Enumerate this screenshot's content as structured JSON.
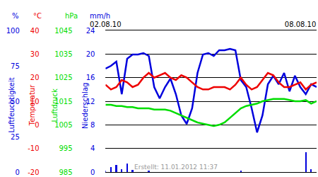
{
  "chart_data": {
    "type": "line",
    "grid": true,
    "x": [
      0,
      4,
      8,
      12,
      16,
      20,
      24,
      28,
      32,
      36,
      40,
      44,
      48,
      52,
      56,
      60,
      64,
      68,
      72,
      76,
      80,
      84,
      88,
      92,
      96,
      100,
      104,
      108,
      112,
      116,
      120,
      124,
      128,
      132,
      136,
      140,
      144,
      148,
      152,
      156
    ],
    "xlim": [
      0,
      156
    ],
    "xticks": [
      {
        "value": 0,
        "label": "02.08.10"
      },
      {
        "value": 144,
        "label": "08.08.10"
      }
    ],
    "annotations": [
      "Erstellt: 11.01.2012 11:37"
    ],
    "series": [
      {
        "name": "Luftfeuchtigkeit",
        "unit": "%",
        "color": "#0000dd",
        "type": "line",
        "axis": "y",
        "ylim": [
          0,
          100
        ],
        "yticks": [
          0,
          25,
          50,
          75,
          100
        ],
        "values": [
          73,
          75,
          78,
          55,
          80,
          83,
          83,
          84,
          82,
          60,
          52,
          60,
          66,
          55,
          40,
          34,
          45,
          70,
          83,
          84,
          82,
          86,
          86,
          87,
          86,
          65,
          60,
          45,
          28,
          40,
          62,
          68,
          62,
          70,
          57,
          68,
          60,
          55,
          62,
          60
        ]
      },
      {
        "name": "Temperatur",
        "unit": "°C",
        "color": "#ee0000",
        "type": "line",
        "axis": "y2",
        "ylim": [
          -20,
          40
        ],
        "yticks": [
          -20,
          -10,
          0,
          10,
          20,
          30,
          40
        ],
        "values": [
          17,
          15,
          16,
          19,
          18,
          16,
          17,
          20,
          22,
          20,
          21,
          22,
          20,
          19,
          21,
          20,
          18,
          16,
          15,
          15,
          16,
          16,
          16,
          15,
          17,
          20,
          17,
          15,
          16,
          19,
          22,
          21,
          18,
          16,
          16,
          17,
          18,
          15,
          17,
          18
        ]
      },
      {
        "name": "Luftdruck",
        "unit": "hPa",
        "color": "#00dd00",
        "type": "line",
        "axis": "y3",
        "ylim": [
          985,
          1045
        ],
        "yticks": [
          985,
          995,
          1005,
          1015,
          1025,
          1035,
          1045
        ],
        "values": [
          1013.5,
          1013.5,
          1013,
          1013,
          1012.5,
          1012.5,
          1012,
          1012,
          1012,
          1011.5,
          1011.5,
          1011.5,
          1011,
          1010,
          1009,
          1008,
          1007,
          1006,
          1005.5,
          1005,
          1004.5,
          1005,
          1006,
          1008,
          1010,
          1012,
          1013,
          1013.5,
          1014,
          1015,
          1015.5,
          1016,
          1016,
          1016,
          1015.5,
          1015,
          1015,
          1015.5,
          1014,
          1015
        ]
      },
      {
        "name": "Niederschlag",
        "unit": "mm/h",
        "color": "#0000dd",
        "type": "bar",
        "axis": "y4",
        "ylim": [
          0,
          24
        ],
        "yticks": [
          0,
          4,
          8,
          12,
          16,
          20,
          24
        ],
        "values": [
          0.3,
          0.8,
          1.2,
          0.5,
          1.5,
          0.4,
          0,
          0,
          0.3,
          0,
          0,
          0,
          0,
          0,
          0,
          0,
          0,
          0,
          0,
          0,
          0,
          0,
          0,
          0,
          0,
          0.3,
          0,
          0,
          0,
          0,
          0,
          0,
          0,
          0,
          0,
          0,
          0,
          3.4,
          0.5,
          0
        ]
      }
    ]
  }
}
